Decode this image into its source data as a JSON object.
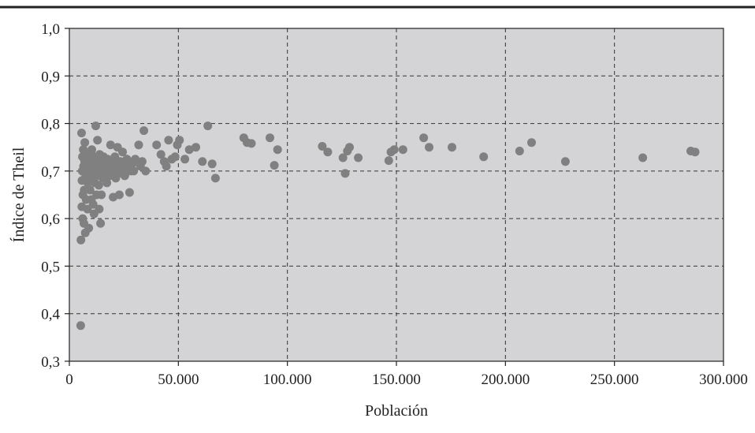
{
  "chart_data": {
    "type": "scatter",
    "title": "",
    "xlabel": "Población",
    "ylabel": "Índice de Theil",
    "xlim": [
      0,
      300000
    ],
    "ylim": [
      0.3,
      1.0
    ],
    "grid": true,
    "legend": "none",
    "x_ticks": [
      0,
      50000,
      100000,
      150000,
      200000,
      250000,
      300000
    ],
    "x_tick_labels": [
      "0",
      "50.000",
      "100.000",
      "150.000",
      "200.000",
      "250.000",
      "300.000"
    ],
    "y_ticks": [
      0.3,
      0.4,
      0.5,
      0.6,
      0.7,
      0.8,
      0.9,
      1.0
    ],
    "y_tick_labels": [
      "0,3",
      "0,4",
      "0,5",
      "0,6",
      "0,7",
      "0,8",
      "0,9",
      "1,0"
    ],
    "colors": {
      "plot_background": "#d4d4d6",
      "points": "#808080",
      "grid": "#333333"
    },
    "series": [
      {
        "points": [
          [
            5200,
            0.375
          ],
          [
            5300,
            0.555
          ],
          [
            5600,
            0.78
          ],
          [
            5700,
            0.625
          ],
          [
            5800,
            0.68
          ],
          [
            5900,
            0.7
          ],
          [
            6000,
            0.73
          ],
          [
            6100,
            0.6
          ],
          [
            6200,
            0.65
          ],
          [
            6400,
            0.745
          ],
          [
            6500,
            0.71
          ],
          [
            6700,
            0.59
          ],
          [
            6800,
            0.66
          ],
          [
            7000,
            0.72
          ],
          [
            7100,
            0.76
          ],
          [
            7300,
            0.57
          ],
          [
            7500,
            0.69
          ],
          [
            7700,
            0.64
          ],
          [
            7900,
            0.7
          ],
          [
            8100,
            0.73
          ],
          [
            8300,
            0.62
          ],
          [
            8500,
            0.675
          ],
          [
            8700,
            0.71
          ],
          [
            8900,
            0.58
          ],
          [
            9100,
            0.735
          ],
          [
            9300,
            0.69
          ],
          [
            9500,
            0.66
          ],
          [
            9700,
            0.72
          ],
          [
            9900,
            0.7
          ],
          [
            10100,
            0.64
          ],
          [
            10300,
            0.745
          ],
          [
            10500,
            0.68
          ],
          [
            10700,
            0.71
          ],
          [
            10900,
            0.63
          ],
          [
            11100,
            0.7
          ],
          [
            11300,
            0.61
          ],
          [
            11500,
            0.72
          ],
          [
            11700,
            0.675
          ],
          [
            11900,
            0.73
          ],
          [
            12100,
            0.795
          ],
          [
            12300,
            0.69
          ],
          [
            12500,
            0.65
          ],
          [
            12700,
            0.71
          ],
          [
            12900,
            0.765
          ],
          [
            13100,
            0.7
          ],
          [
            13300,
            0.72
          ],
          [
            13500,
            0.67
          ],
          [
            13700,
            0.62
          ],
          [
            13900,
            0.735
          ],
          [
            14100,
            0.69
          ],
          [
            14300,
            0.59
          ],
          [
            14500,
            0.71
          ],
          [
            14700,
            0.65
          ],
          [
            14900,
            0.72
          ],
          [
            15100,
            0.7
          ],
          [
            15400,
            0.685
          ],
          [
            15700,
            0.73
          ],
          [
            16000,
            0.71
          ],
          [
            16300,
            0.695
          ],
          [
            16600,
            0.72
          ],
          [
            16900,
            0.7
          ],
          [
            17200,
            0.675
          ],
          [
            17500,
            0.725
          ],
          [
            17800,
            0.7
          ],
          [
            18100,
            0.715
          ],
          [
            18500,
            0.69
          ],
          [
            18900,
            0.755
          ],
          [
            19300,
            0.705
          ],
          [
            19700,
            0.72
          ],
          [
            20100,
            0.645
          ],
          [
            20500,
            0.7
          ],
          [
            20900,
            0.73
          ],
          [
            21300,
            0.685
          ],
          [
            21700,
            0.71
          ],
          [
            22100,
            0.75
          ],
          [
            22500,
            0.695
          ],
          [
            22900,
            0.65
          ],
          [
            23400,
            0.72
          ],
          [
            23900,
            0.7
          ],
          [
            24400,
            0.74
          ],
          [
            24900,
            0.71
          ],
          [
            25400,
            0.69
          ],
          [
            25900,
            0.705
          ],
          [
            26400,
            0.725
          ],
          [
            27000,
            0.715
          ],
          [
            27600,
            0.655
          ],
          [
            28200,
            0.7
          ],
          [
            28800,
            0.715
          ],
          [
            29500,
            0.7
          ],
          [
            30200,
            0.725
          ],
          [
            31000,
            0.72
          ],
          [
            31800,
            0.755
          ],
          [
            32600,
            0.71
          ],
          [
            33400,
            0.72
          ],
          [
            34200,
            0.785
          ],
          [
            35000,
            0.7
          ],
          [
            40000,
            0.755
          ],
          [
            42000,
            0.735
          ],
          [
            43500,
            0.72
          ],
          [
            44500,
            0.71
          ],
          [
            45500,
            0.765
          ],
          [
            47000,
            0.725
          ],
          [
            48500,
            0.73
          ],
          [
            49500,
            0.755
          ],
          [
            50500,
            0.765
          ],
          [
            53000,
            0.725
          ],
          [
            55000,
            0.745
          ],
          [
            58000,
            0.75
          ],
          [
            61000,
            0.72
          ],
          [
            63500,
            0.795
          ],
          [
            65500,
            0.715
          ],
          [
            67000,
            0.685
          ],
          [
            80000,
            0.77
          ],
          [
            81500,
            0.76
          ],
          [
            83500,
            0.758
          ],
          [
            92000,
            0.77
          ],
          [
            94000,
            0.712
          ],
          [
            95500,
            0.745
          ],
          [
            116000,
            0.752
          ],
          [
            118500,
            0.74
          ],
          [
            125500,
            0.728
          ],
          [
            126500,
            0.695
          ],
          [
            127500,
            0.742
          ],
          [
            128500,
            0.75
          ],
          [
            132500,
            0.728
          ],
          [
            146500,
            0.722
          ],
          [
            147500,
            0.74
          ],
          [
            149000,
            0.745
          ],
          [
            153000,
            0.745
          ],
          [
            162500,
            0.77
          ],
          [
            165000,
            0.75
          ],
          [
            175500,
            0.75
          ],
          [
            190000,
            0.73
          ],
          [
            206500,
            0.742
          ],
          [
            212000,
            0.76
          ],
          [
            227500,
            0.72
          ],
          [
            263000,
            0.728
          ],
          [
            285000,
            0.742
          ],
          [
            287000,
            0.74
          ]
        ]
      }
    ]
  }
}
